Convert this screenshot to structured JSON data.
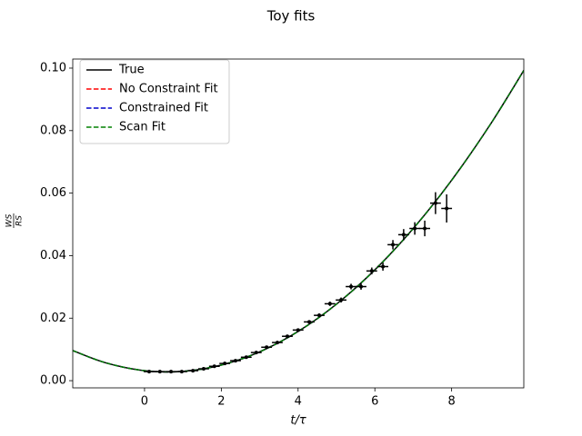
{
  "chart_data": {
    "type": "line",
    "title": "Toy fits",
    "xlabel": "t/τ",
    "ylabel_numerator": "WS",
    "ylabel_denominator": "RS",
    "xlim": [
      -1.87,
      9.88
    ],
    "ylim": [
      -0.0023,
      0.1029
    ],
    "xticks": [
      0,
      2,
      4,
      6,
      8
    ],
    "yticks": [
      {
        "value": 0,
        "label": "0.00"
      },
      {
        "value": 0.02,
        "label": "0.02"
      },
      {
        "value": 0.04,
        "label": "0.04"
      },
      {
        "value": 0.06,
        "label": "0.06"
      },
      {
        "value": 0.08,
        "label": "0.08"
      },
      {
        "value": 0.1,
        "label": "0.10"
      }
    ],
    "legend": "upper left",
    "x": [
      -1.87,
      -1,
      0,
      1,
      2,
      3,
      4,
      5,
      6,
      7,
      8,
      9,
      9.88
    ],
    "series": [
      {
        "name": "True",
        "color": "#000000",
        "dash": false,
        "values": [
          0.00963,
          0.00567,
          0.0032,
          0.00298,
          0.005,
          0.00925,
          0.01575,
          0.02448,
          0.03546,
          0.04868,
          0.06413,
          0.08183,
          0.09925
        ]
      },
      {
        "name": "No Constraint Fit",
        "color": "#ff0000",
        "dash": true,
        "values": [
          0.00963,
          0.00567,
          0.0032,
          0.00298,
          0.005,
          0.00925,
          0.01575,
          0.02448,
          0.03546,
          0.04868,
          0.06413,
          0.08183,
          0.09925
        ]
      },
      {
        "name": "Constrained Fit",
        "color": "#0000cc",
        "dash": true,
        "values": [
          0.00963,
          0.00567,
          0.0032,
          0.00298,
          0.005,
          0.00925,
          0.01575,
          0.02448,
          0.03546,
          0.04868,
          0.06413,
          0.08183,
          0.09925
        ]
      },
      {
        "name": "Scan Fit",
        "color": "#008000",
        "dash": true,
        "values": [
          0.00963,
          0.00567,
          0.0032,
          0.00298,
          0.005,
          0.00925,
          0.01575,
          0.02448,
          0.03546,
          0.04868,
          0.06413,
          0.08183,
          0.09925
        ]
      }
    ],
    "points": {
      "color": "#000000",
      "x": [
        0.12,
        0.4,
        0.69,
        0.97,
        1.26,
        1.54,
        1.82,
        2.09,
        2.37,
        2.65,
        2.91,
        3.18,
        3.46,
        3.72,
        4.0,
        4.29,
        4.55,
        4.83,
        5.12,
        5.38,
        5.64,
        5.92,
        6.21,
        6.47,
        6.75,
        7.04,
        7.3,
        7.58,
        7.87
      ],
      "values": [
        0.0029,
        0.0029,
        0.0029,
        0.0029,
        0.0032,
        0.0038,
        0.0046,
        0.0055,
        0.0064,
        0.0075,
        0.009,
        0.0107,
        0.0122,
        0.0142,
        0.0162,
        0.0188,
        0.0209,
        0.0246,
        0.0258,
        0.0301,
        0.0301,
        0.0351,
        0.0365,
        0.0435,
        0.0467,
        0.0487,
        0.0487,
        0.0568,
        0.0551
      ],
      "xerr": [
        0.14,
        0.14,
        0.14,
        0.14,
        0.14,
        0.14,
        0.14,
        0.14,
        0.14,
        0.14,
        0.14,
        0.14,
        0.14,
        0.14,
        0.14,
        0.14,
        0.14,
        0.14,
        0.14,
        0.14,
        0.14,
        0.14,
        0.14,
        0.14,
        0.14,
        0.14,
        0.14,
        0.14,
        0.14
      ],
      "yerr": [
        0.0002,
        0.0002,
        0.0002,
        0.0002,
        0.0002,
        0.0002,
        0.0002,
        0.0002,
        0.0002,
        0.0002,
        0.0003,
        0.0003,
        0.0004,
        0.0004,
        0.0005,
        0.0005,
        0.0006,
        0.0007,
        0.0008,
        0.0009,
        0.001,
        0.0011,
        0.0013,
        0.0015,
        0.0018,
        0.002,
        0.0025,
        0.0035,
        0.0045
      ]
    }
  }
}
